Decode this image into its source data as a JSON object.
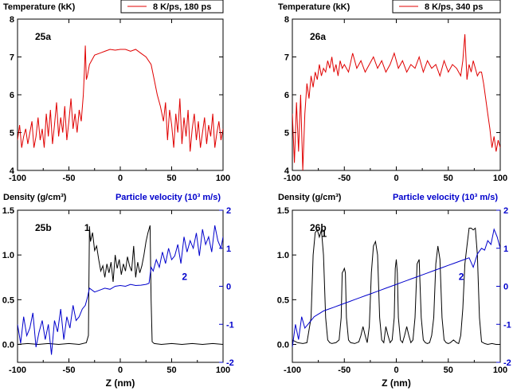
{
  "chart_data": [
    {
      "id": "25a",
      "type": "line",
      "panel_label": "25a",
      "ylabel": "Temperature (kK)",
      "legend": "8 K/ps, 180 ps",
      "legend_position": "top-right",
      "xlim": [
        -100,
        100
      ],
      "ylim": [
        4,
        8
      ],
      "xticks": [
        -100,
        -50,
        0,
        50,
        100
      ],
      "xticklabels": [
        "-100",
        "-50",
        "0",
        "50",
        "100"
      ],
      "yticks": [
        4,
        5,
        6,
        7,
        8
      ],
      "yticklabels": [
        "4",
        "5",
        "6",
        "7",
        "8"
      ],
      "series": [
        {
          "name": "8 K/ps, 180 ps",
          "color": "#e00000",
          "x": [
            -100,
            -98,
            -96,
            -94,
            -92,
            -90,
            -88,
            -86,
            -84,
            -82,
            -80,
            -78,
            -76,
            -74,
            -72,
            -70,
            -68,
            -66,
            -64,
            -62,
            -60,
            -58,
            -56,
            -54,
            -52,
            -50,
            -48,
            -46,
            -44,
            -42,
            -40,
            -38,
            -36,
            -35,
            -34,
            -33,
            -32,
            -30,
            -28,
            -25,
            -20,
            -15,
            -10,
            -5,
            0,
            5,
            10,
            15,
            20,
            25,
            30,
            33,
            36,
            39,
            42,
            44,
            46,
            48,
            50,
            52,
            54,
            56,
            58,
            60,
            62,
            64,
            66,
            68,
            70,
            72,
            74,
            76,
            78,
            80,
            82,
            84,
            86,
            88,
            90,
            92,
            94,
            96,
            98,
            100
          ],
          "y": [
            4.8,
            5.2,
            4.6,
            4.9,
            5.1,
            4.7,
            5.0,
            5.3,
            4.6,
            4.9,
            5.4,
            4.8,
            5.1,
            4.6,
            5.5,
            4.9,
            5.6,
            4.7,
            5.2,
            5.8,
            4.9,
            5.4,
            5.0,
            5.7,
            4.8,
            5.3,
            5.9,
            5.1,
            5.5,
            5.0,
            5.6,
            5.3,
            6.0,
            6.6,
            7.3,
            6.4,
            6.5,
            6.8,
            6.9,
            7.05,
            7.1,
            7.15,
            7.2,
            7.18,
            7.2,
            7.2,
            7.15,
            7.2,
            7.1,
            7.0,
            6.8,
            6.4,
            6.0,
            5.7,
            5.3,
            5.8,
            4.8,
            5.6,
            5.2,
            4.6,
            5.5,
            5.0,
            5.9,
            4.7,
            5.4,
            4.9,
            5.6,
            4.5,
            5.1,
            5.5,
            4.8,
            5.3,
            4.6,
            5.0,
            5.4,
            4.7,
            5.2,
            4.9,
            5.5,
            4.6,
            5.0,
            5.3,
            4.8,
            5.1
          ]
        }
      ]
    },
    {
      "id": "26a",
      "type": "line",
      "panel_label": "26a",
      "ylabel": "Temperature (kK)",
      "legend": "8 K/ps, 340 ps",
      "legend_position": "top-right",
      "xlim": [
        -100,
        100
      ],
      "ylim": [
        4,
        8
      ],
      "xticks": [
        -100,
        -50,
        0,
        50,
        100
      ],
      "xticklabels": [
        "-100",
        "-50",
        "0",
        "50",
        "100"
      ],
      "yticks": [
        4,
        5,
        6,
        7,
        8
      ],
      "yticklabels": [
        "4",
        "5",
        "6",
        "7",
        "8"
      ],
      "series": [
        {
          "name": "8 K/ps, 340 ps",
          "color": "#e00000",
          "x": [
            -100,
            -98,
            -96,
            -94,
            -92,
            -90,
            -88,
            -86,
            -84,
            -82,
            -80,
            -78,
            -76,
            -74,
            -72,
            -70,
            -68,
            -66,
            -64,
            -62,
            -60,
            -58,
            -56,
            -54,
            -52,
            -50,
            -46,
            -42,
            -38,
            -34,
            -30,
            -26,
            -22,
            -18,
            -14,
            -10,
            -6,
            -2,
            2,
            6,
            10,
            14,
            18,
            22,
            26,
            30,
            34,
            38,
            42,
            46,
            50,
            54,
            58,
            62,
            64,
            66,
            68,
            70,
            72,
            74,
            76,
            78,
            80,
            82,
            84,
            86,
            88,
            90,
            92,
            94,
            96,
            98,
            100
          ],
          "y": [
            5.5,
            4.2,
            5.8,
            4.5,
            6.0,
            4.0,
            5.5,
            6.3,
            5.9,
            6.5,
            6.2,
            6.6,
            6.4,
            6.8,
            6.5,
            6.7,
            6.6,
            6.9,
            6.7,
            7.0,
            6.6,
            6.8,
            6.5,
            6.9,
            6.7,
            6.8,
            6.6,
            7.1,
            6.7,
            6.9,
            6.6,
            6.8,
            7.0,
            6.7,
            6.9,
            6.6,
            6.8,
            7.1,
            6.7,
            6.9,
            6.6,
            6.8,
            6.7,
            7.0,
            6.6,
            6.9,
            6.7,
            6.8,
            6.5,
            6.9,
            6.6,
            6.8,
            6.7,
            6.5,
            6.9,
            7.6,
            6.4,
            6.8,
            6.6,
            6.9,
            6.7,
            6.5,
            6.6,
            6.6,
            6.3,
            5.9,
            5.5,
            5.1,
            4.6,
            4.9,
            4.5,
            4.8,
            4.6
          ]
        }
      ]
    },
    {
      "id": "25b",
      "type": "line",
      "panel_label": "25b",
      "ylabel": "Density (g/cm³)",
      "y2label": "Particle velocity (10³ m/s)",
      "xlabel": "Z (nm)",
      "xlim": [
        -100,
        100
      ],
      "ylim": [
        -0.2,
        1.5
      ],
      "y2lim": [
        -2,
        2
      ],
      "xticks": [
        -100,
        -50,
        0,
        50,
        100
      ],
      "xticklabels": [
        "-100",
        "-50",
        "0",
        "50",
        "100"
      ],
      "yticks": [
        0.0,
        0.5,
        1.0,
        1.5
      ],
      "yticklabels": [
        "0.0",
        "0.5",
        "1.0",
        "1.5"
      ],
      "y2ticks": [
        -2,
        -1,
        0,
        1,
        2
      ],
      "y2ticklabels": [
        "-2",
        "-1",
        "0",
        "1",
        "2"
      ],
      "annotations": [
        {
          "text": "1",
          "x": -35,
          "y": 1.27
        },
        {
          "text": "2",
          "x": 60,
          "y": 0.72,
          "color": "#0000cc"
        }
      ],
      "series": [
        {
          "name": "1",
          "axis": "left",
          "color": "#000000",
          "x": [
            -100,
            -90,
            -80,
            -70,
            -60,
            -50,
            -40,
            -33,
            -31,
            -30,
            -29,
            -27,
            -25,
            -23,
            -21,
            -19,
            -17,
            -15,
            -13,
            -11,
            -9,
            -7,
            -5,
            -3,
            -1,
            1,
            3,
            5,
            7,
            9,
            11,
            13,
            15,
            17,
            19,
            21,
            23,
            25,
            27,
            29,
            30,
            31,
            33,
            40,
            50,
            60,
            70,
            80,
            90,
            100
          ],
          "y": [
            0.0,
            0.01,
            0.0,
            0.01,
            0.0,
            0.01,
            0.0,
            0.02,
            0.1,
            1.32,
            1.15,
            1.25,
            1.05,
            1.1,
            0.95,
            0.82,
            0.88,
            0.75,
            0.9,
            0.8,
            0.92,
            0.7,
            1.0,
            0.85,
            0.95,
            0.78,
            0.9,
            0.82,
            0.98,
            0.88,
            0.82,
            1.1,
            0.75,
            0.92,
            0.8,
            0.88,
            1.0,
            1.15,
            1.25,
            1.33,
            0.5,
            0.03,
            0.01,
            0.0,
            0.01,
            0.0,
            0.01,
            0.0,
            0.01,
            0.0
          ]
        },
        {
          "name": "2",
          "axis": "right",
          "color": "#0000cc",
          "x": [
            -100,
            -97,
            -94,
            -91,
            -88,
            -85,
            -82,
            -79,
            -76,
            -73,
            -70,
            -67,
            -64,
            -61,
            -58,
            -55,
            -52,
            -49,
            -46,
            -43,
            -40,
            -37,
            -34,
            -32,
            -30,
            -25,
            -20,
            -15,
            -10,
            -5,
            0,
            5,
            10,
            15,
            20,
            25,
            28,
            29,
            30,
            32,
            35,
            38,
            41,
            44,
            47,
            50,
            53,
            56,
            59,
            62,
            65,
            68,
            71,
            74,
            77,
            80,
            83,
            86,
            89,
            92,
            95,
            98,
            100
          ],
          "y": [
            -1.0,
            -1.5,
            -0.8,
            -1.3,
            -1.1,
            -0.7,
            -1.6,
            -1.2,
            -0.9,
            -1.4,
            -1.0,
            -1.8,
            -0.9,
            -1.2,
            -0.6,
            -1.4,
            -0.8,
            -1.1,
            -0.5,
            -0.9,
            -0.8,
            -0.6,
            -0.5,
            -0.3,
            -0.05,
            -0.15,
            -0.1,
            -0.05,
            -0.08,
            0.0,
            0.02,
            0.0,
            0.05,
            0.02,
            0.03,
            0.05,
            0.08,
            0.3,
            0.5,
            0.4,
            0.7,
            0.5,
            0.9,
            0.6,
            1.0,
            0.7,
            0.8,
            1.1,
            0.6,
            1.3,
            0.9,
            1.2,
            1.0,
            1.4,
            0.8,
            1.5,
            1.1,
            1.3,
            0.9,
            1.6,
            1.2,
            1.0,
            1.3
          ]
        }
      ]
    },
    {
      "id": "26b",
      "type": "line",
      "panel_label": "26b",
      "ylabel": "Density (g/cm³)",
      "y2label": "Particle velocity (10³ m/s)",
      "xlabel": "Z (nm)",
      "xlim": [
        -100,
        100
      ],
      "ylim": [
        -0.2,
        1.5
      ],
      "y2lim": [
        -2,
        2
      ],
      "xticks": [
        -100,
        -50,
        0,
        50,
        100
      ],
      "xticklabels": [
        "-100",
        "-50",
        "0",
        "50",
        "100"
      ],
      "yticks": [
        0.0,
        0.5,
        1.0,
        1.5
      ],
      "yticklabels": [
        "0.0",
        "0.5",
        "1.0",
        "1.5"
      ],
      "y2ticks": [
        -2,
        -1,
        0,
        1,
        2
      ],
      "y2ticklabels": [
        "-2",
        "-1",
        "0",
        "1",
        "2"
      ],
      "annotations": [
        {
          "text": "1",
          "x": -72,
          "y": 1.2
        },
        {
          "text": "2",
          "x": 60,
          "y": 0.72,
          "color": "#0000cc"
        }
      ],
      "series": [
        {
          "name": "1",
          "axis": "left",
          "color": "#000000",
          "x": [
            -100,
            -95,
            -90,
            -86,
            -82,
            -80,
            -78,
            -76,
            -74,
            -72,
            -70,
            -68,
            -66,
            -64,
            -62,
            -58,
            -55,
            -53,
            -52,
            -51,
            -50,
            -49,
            -48,
            -46,
            -44,
            -40,
            -36,
            -34,
            -32,
            -30,
            -28,
            -26,
            -24,
            -22,
            -20,
            -18,
            -16,
            -14,
            -12,
            -10,
            -8,
            -6,
            -4,
            -2,
            -1,
            0,
            1,
            2,
            4,
            6,
            8,
            10,
            12,
            14,
            16,
            18,
            20,
            22,
            24,
            26,
            28,
            30,
            32,
            34,
            36,
            38,
            40,
            42,
            44,
            46,
            48,
            50,
            52,
            55,
            58,
            60,
            62,
            64,
            66,
            68,
            70,
            72,
            74,
            76,
            78,
            80,
            82,
            85,
            88,
            92,
            96,
            100
          ],
          "y": [
            0.05,
            0.02,
            0.01,
            0.02,
            0.3,
            1.0,
            1.25,
            1.28,
            1.2,
            1.28,
            1.0,
            0.3,
            0.05,
            0.02,
            0.01,
            0.02,
            0.05,
            0.3,
            0.8,
            0.82,
            0.85,
            0.8,
            0.3,
            0.05,
            0.02,
            0.01,
            0.03,
            0.1,
            0.2,
            0.1,
            0.02,
            0.2,
            0.8,
            1.1,
            1.15,
            1.0,
            0.3,
            0.05,
            0.02,
            0.2,
            0.1,
            0.02,
            0.05,
            0.3,
            0.85,
            0.95,
            0.8,
            0.3,
            0.05,
            0.02,
            0.1,
            0.2,
            0.1,
            0.02,
            0.05,
            0.3,
            0.9,
            0.95,
            0.3,
            0.05,
            0.02,
            0.01,
            0.02,
            0.1,
            0.3,
            0.9,
            1.1,
            0.95,
            0.3,
            0.05,
            0.02,
            0.01,
            0.02,
            0.05,
            0.02,
            0.01,
            0.1,
            0.4,
            0.9,
            1.1,
            1.3,
            1.3,
            1.28,
            1.3,
            1.0,
            0.3,
            0.03,
            0.01,
            0.0,
            0.01,
            0.0,
            0.0
          ]
        },
        {
          "name": "2",
          "axis": "right",
          "color": "#0000cc",
          "x": [
            -100,
            -97,
            -94,
            -91,
            -88,
            -85,
            -82,
            -79,
            -76,
            -73,
            -70,
            -65,
            -60,
            -55,
            -50,
            -45,
            -40,
            -35,
            -30,
            -25,
            -20,
            -15,
            -10,
            -5,
            0,
            5,
            10,
            15,
            20,
            25,
            30,
            35,
            40,
            45,
            50,
            55,
            60,
            65,
            70,
            74,
            78,
            82,
            85,
            88,
            91,
            94,
            97,
            100
          ],
          "y": [
            -1.6,
            -1.0,
            -1.4,
            -0.8,
            -1.1,
            -1.0,
            -0.9,
            -0.8,
            -0.75,
            -0.7,
            -0.65,
            -0.6,
            -0.55,
            -0.5,
            -0.45,
            -0.4,
            -0.35,
            -0.3,
            -0.25,
            -0.2,
            -0.15,
            -0.1,
            -0.05,
            0.0,
            0.05,
            0.1,
            0.15,
            0.2,
            0.25,
            0.3,
            0.35,
            0.4,
            0.45,
            0.5,
            0.55,
            0.6,
            0.65,
            0.7,
            0.75,
            0.5,
            0.85,
            1.0,
            0.95,
            1.2,
            1.1,
            1.5,
            1.3,
            1.0
          ]
        }
      ]
    }
  ]
}
